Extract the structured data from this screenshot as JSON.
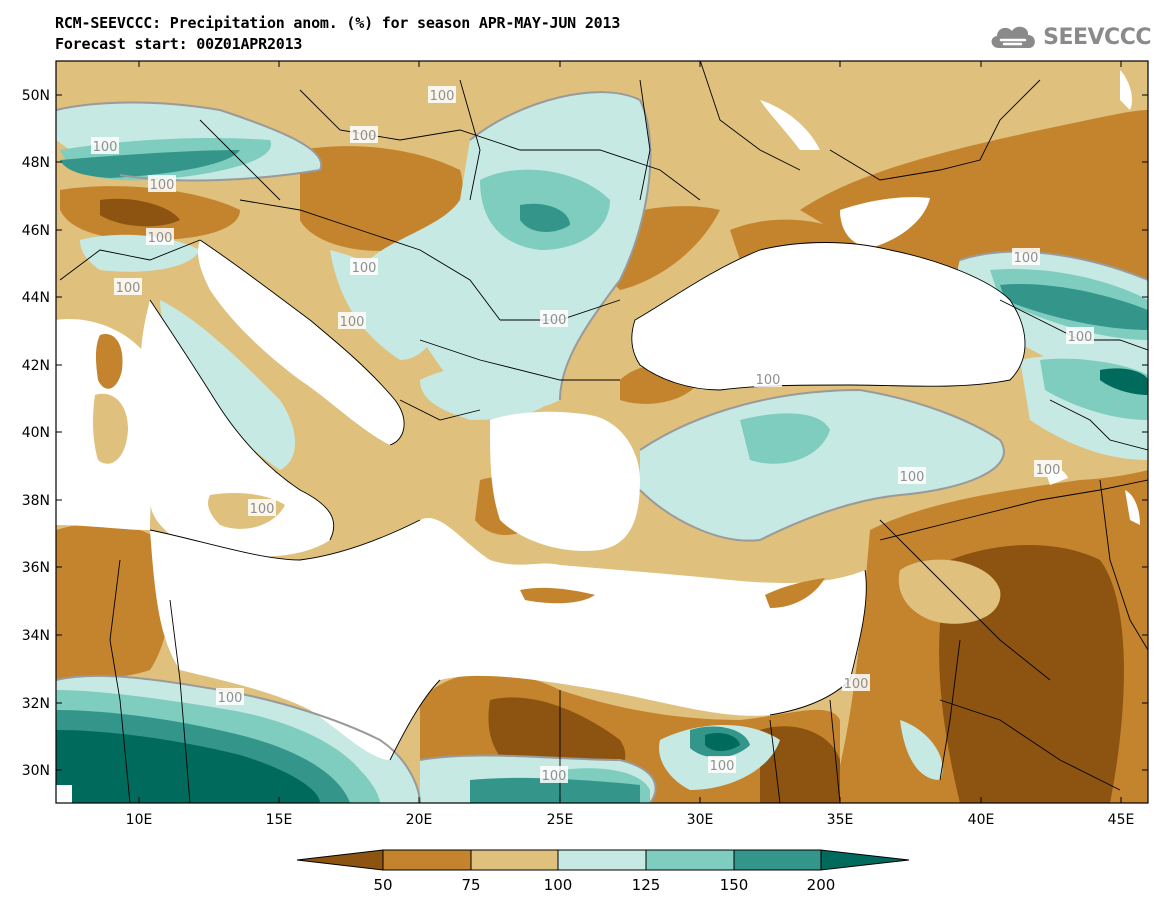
{
  "header": {
    "title_line1": "RCM-SEEVCCC: Precipitation anom. (%) for season APR-MAY-JUN 2013",
    "title_line2": "Forecast start: 00Z01APR2013"
  },
  "logo": {
    "text": "SEEVCCC",
    "icon": "cloud-icon"
  },
  "map": {
    "lat_labels": [
      "50N",
      "48N",
      "46N",
      "44N",
      "42N",
      "40N",
      "38N",
      "36N",
      "34N",
      "32N",
      "30N"
    ],
    "lon_labels": [
      "10E",
      "15E",
      "20E",
      "25E",
      "30E",
      "35E",
      "40E",
      "45E"
    ],
    "contour_label": "100",
    "palette": {
      "lt50": "#8c5410",
      "c50_75": "#c4832d",
      "c75_100": "#dfc07c",
      "c100_125": "#c6eae3",
      "c125_150": "#7ecdbe",
      "c150_200": "#34958b",
      "gt200": "#006a5c",
      "sea": "#ffffff"
    }
  },
  "colorbar": {
    "labels": [
      "50",
      "75",
      "100",
      "125",
      "150",
      "200"
    ],
    "colors": [
      "#8c5410",
      "#c4832d",
      "#dfc07c",
      "#c6eae3",
      "#7ecdbe",
      "#34958b",
      "#006a5c"
    ]
  }
}
